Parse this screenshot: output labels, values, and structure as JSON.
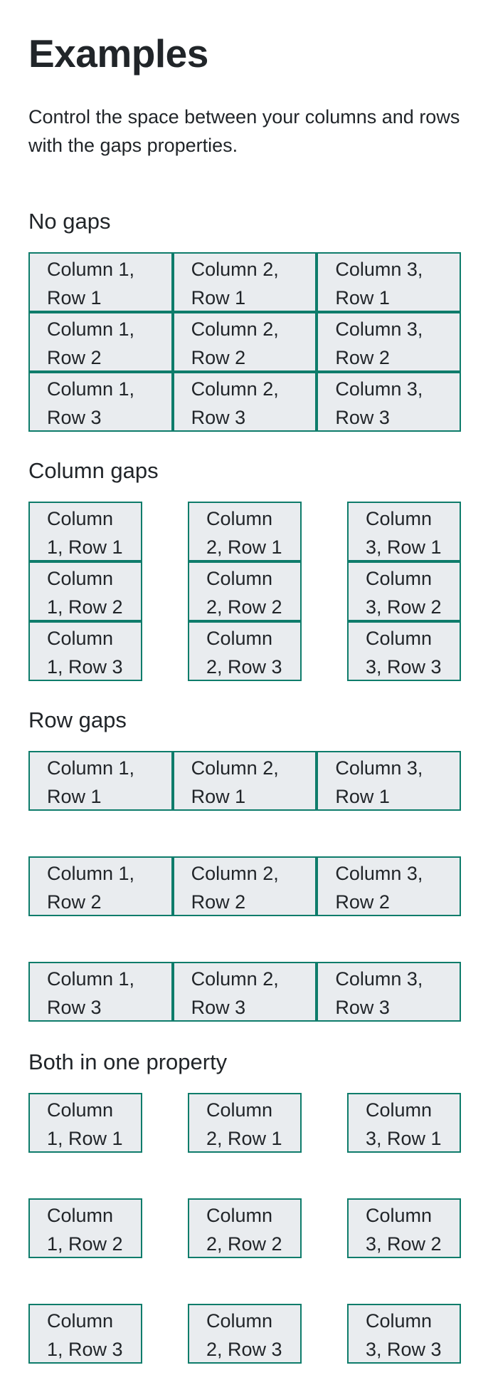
{
  "title": "Examples",
  "lead": "Control the space between your columns and rows with the gaps properties.",
  "sections": [
    {
      "heading": "No gaps",
      "cells": [
        "Column 1, Row 1",
        "Column 2, Row 1",
        "Column 3, Row 1",
        "Column 1, Row 2",
        "Column 2, Row 2",
        "Column 3, Row 2",
        "Column 1, Row 3",
        "Column 2, Row 3",
        "Column 3, Row 3"
      ]
    },
    {
      "heading": "Column gaps",
      "cells": [
        "Column 1, Row 1",
        "Column 2, Row 1",
        "Column 3, Row 1",
        "Column 1, Row 2",
        "Column 2, Row 2",
        "Column 3, Row 2",
        "Column 1, Row 3",
        "Column 2, Row 3",
        "Column 3, Row 3"
      ]
    },
    {
      "heading": "Row gaps",
      "cells": [
        "Column 1, Row 1",
        "Column 2, Row 1",
        "Column 3, Row 1",
        "Column 1, Row 2",
        "Column 2, Row 2",
        "Column 3, Row 2",
        "Column 1, Row 3",
        "Column 2, Row 3",
        "Column 3, Row 3"
      ]
    },
    {
      "heading": "Both in one property",
      "cells": [
        "Column 1, Row 1",
        "Column 2, Row 1",
        "Column 3, Row 1",
        "Column 1, Row 2",
        "Column 2, Row 2",
        "Column 3, Row 2",
        "Column 1, Row 3",
        "Column 2, Row 3",
        "Column 3, Row 3"
      ]
    }
  ],
  "colors": {
    "cell_background": "#e9ecef",
    "cell_border": "#0e7c6b",
    "text": "#212529"
  }
}
